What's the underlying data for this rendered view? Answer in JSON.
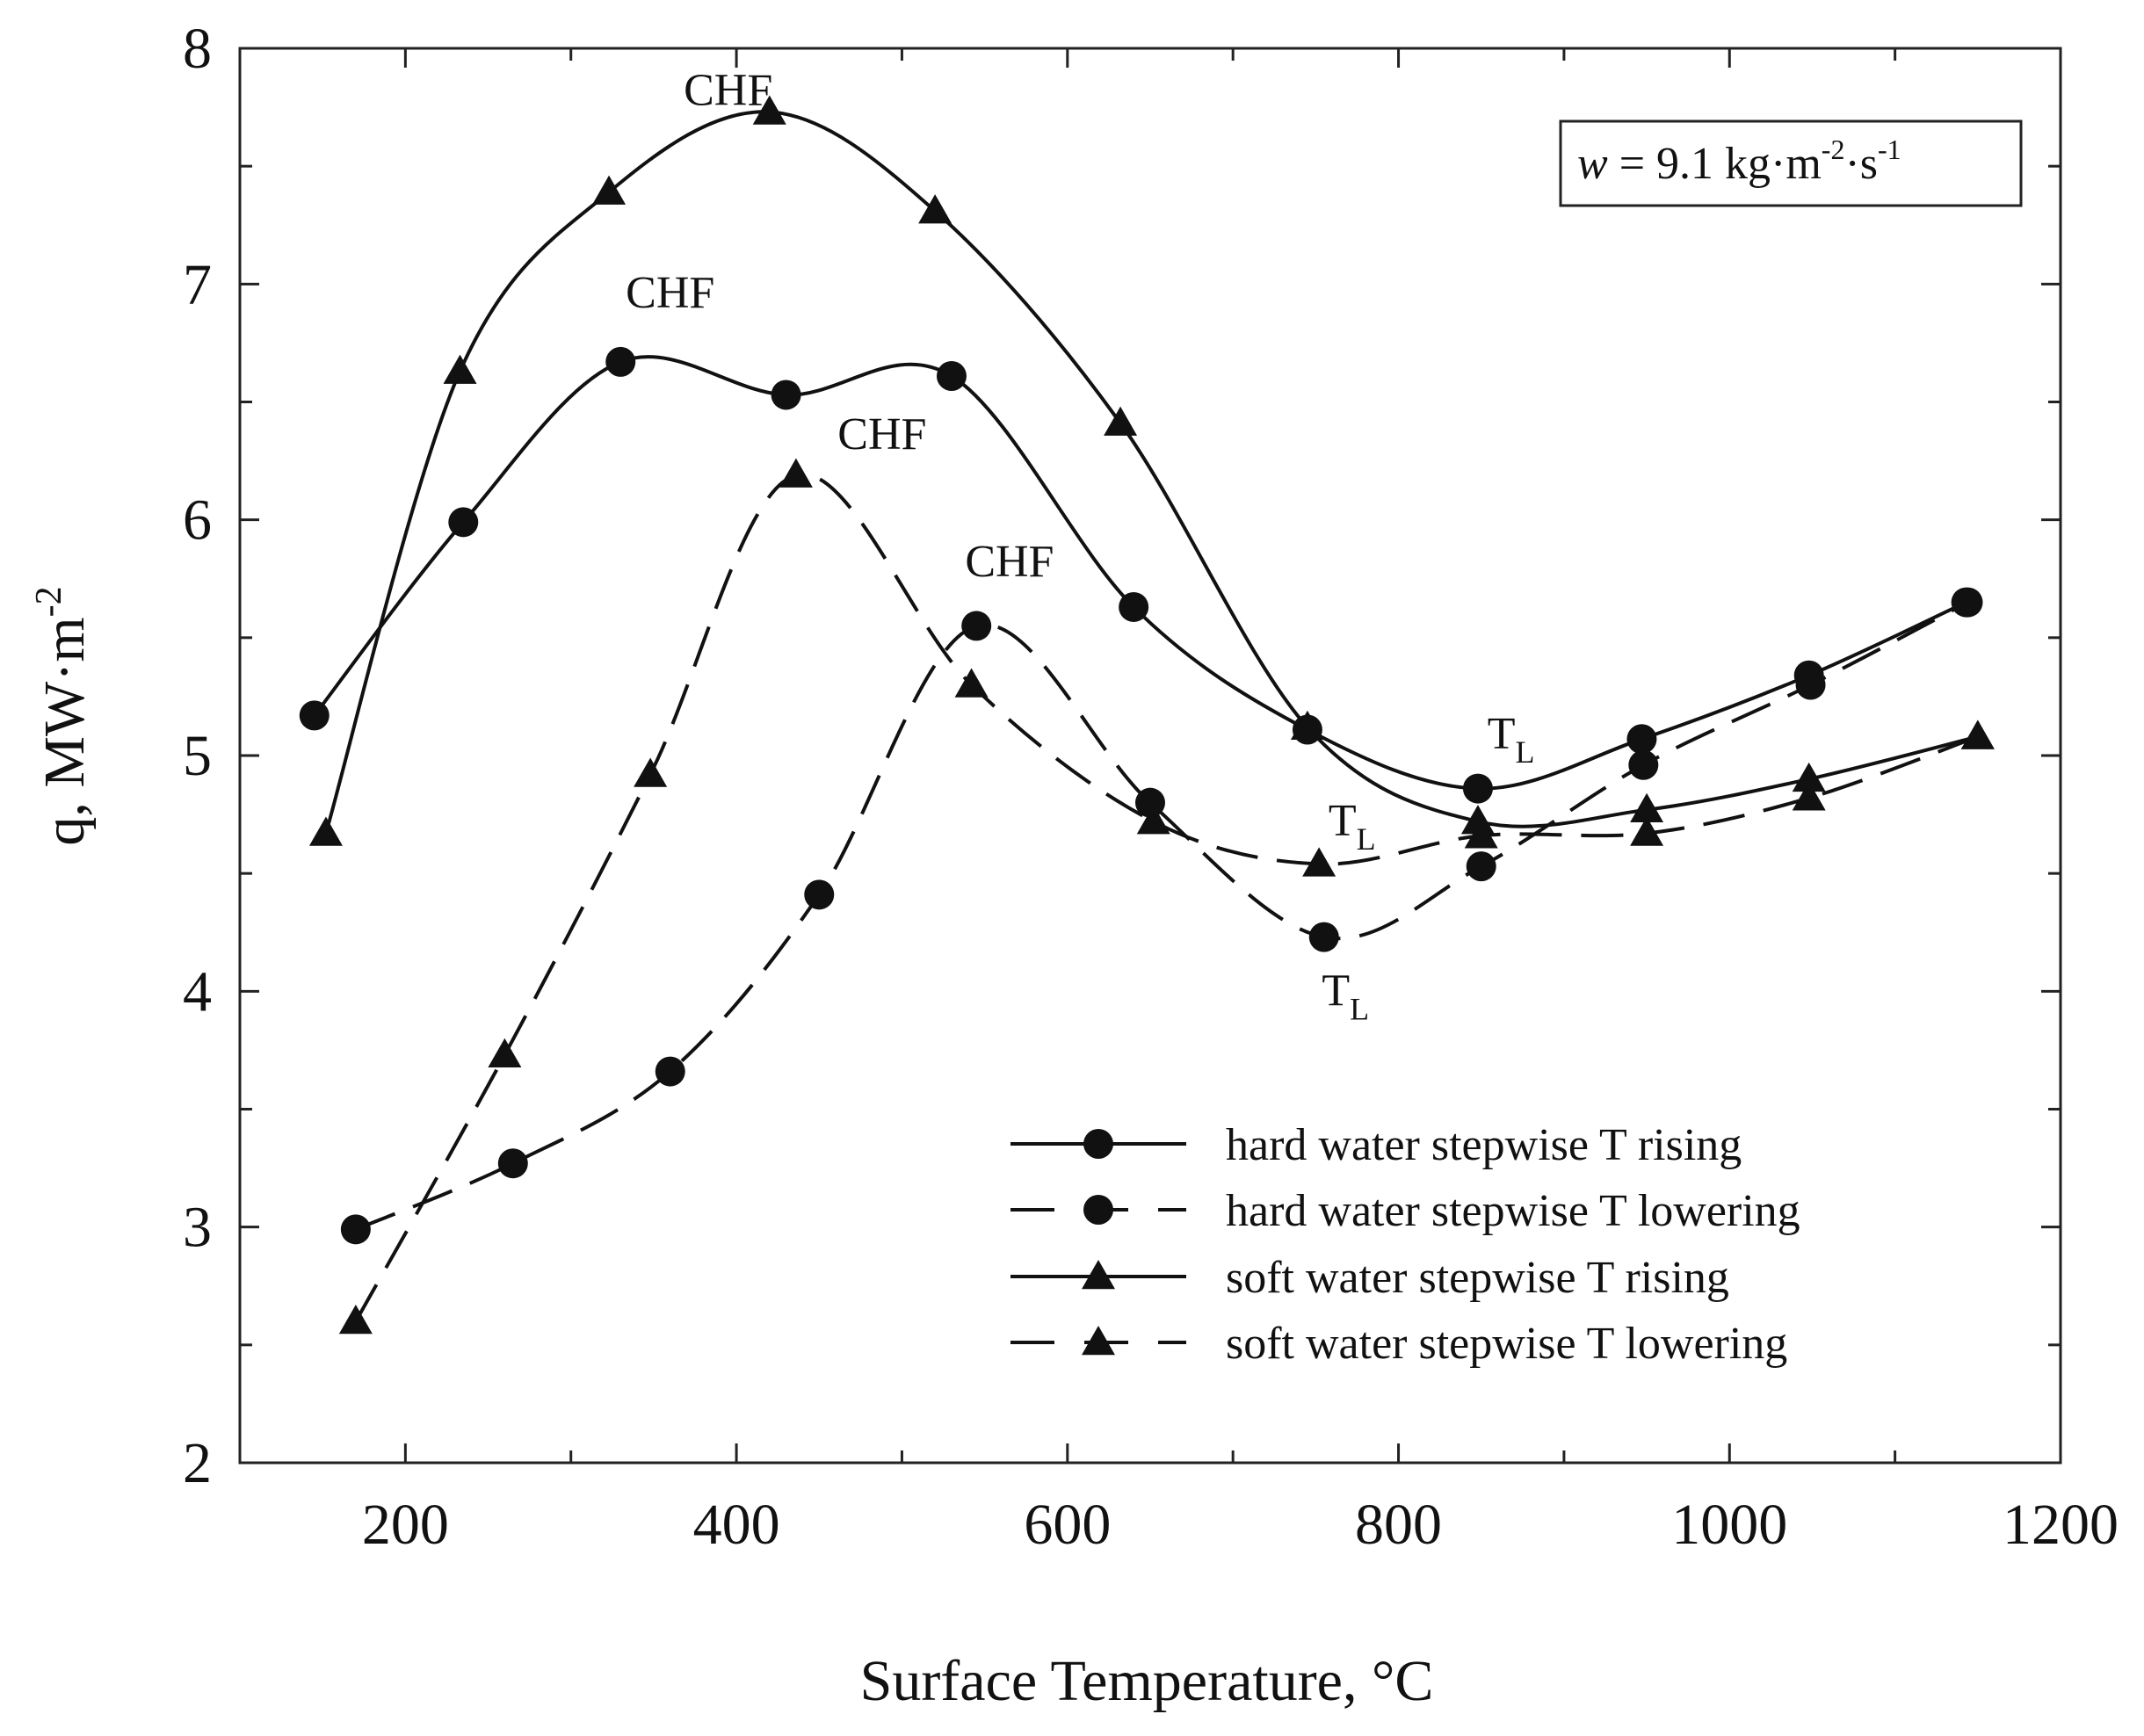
{
  "chart_data": {
    "type": "line",
    "title": "",
    "xlabel": "Surface Temperature, °C",
    "ylabel": "q, MW·m",
    "ylabel_sup": "-2",
    "xlim": [
      100,
      1200
    ],
    "ylim": [
      2,
      8
    ],
    "xticks": [
      200,
      400,
      600,
      800,
      1000,
      1200
    ],
    "yticks": [
      2,
      3,
      4,
      5,
      6,
      7,
      8
    ],
    "grid": false,
    "condition_box": {
      "var": "w",
      "eq": " = 9.1 kg·m",
      "sup1": "-2",
      "mid": "·s",
      "sup2": "-1"
    },
    "legend_position": "bottom-right",
    "series": [
      {
        "name": "hard water stepwise T rising",
        "marker": "circle",
        "dashed": false,
        "x": [
          145,
          235,
          330,
          430,
          530,
          640,
          745,
          848,
          947,
          1048,
          1143
        ],
        "y": [
          5.17,
          5.99,
          6.67,
          6.53,
          6.61,
          5.63,
          5.11,
          4.86,
          5.07,
          5.34,
          5.65
        ]
      },
      {
        "name": "hard water stepwise T lowering",
        "marker": "circle",
        "dashed": true,
        "x": [
          170,
          265,
          360,
          450,
          545,
          650,
          755,
          850,
          948,
          1049,
          1144
        ],
        "y": [
          2.99,
          3.27,
          3.66,
          4.41,
          5.55,
          4.8,
          4.23,
          4.53,
          4.96,
          5.3,
          5.65
        ]
      },
      {
        "name": "soft water stepwise T rising",
        "marker": "triangle",
        "dashed": false,
        "x": [
          152,
          233,
          323,
          420,
          520,
          632,
          745,
          848,
          950,
          1048,
          1150
        ],
        "y": [
          4.67,
          6.63,
          7.39,
          7.73,
          7.31,
          6.41,
          5.12,
          4.72,
          4.77,
          4.9,
          5.08
        ]
      },
      {
        "name": "soft water stepwise T lowering",
        "marker": "triangle",
        "dashed": true,
        "x": [
          170,
          260,
          348,
          436,
          542,
          652,
          752,
          850,
          950,
          1048,
          1150
        ],
        "y": [
          2.6,
          3.73,
          4.92,
          6.19,
          5.3,
          4.72,
          4.54,
          4.66,
          4.67,
          4.82,
          5.08
        ]
      }
    ],
    "annotations": [
      {
        "text": "CHF",
        "x": 395,
        "y": 7.76
      },
      {
        "text": "CHF",
        "x": 360,
        "y": 6.9
      },
      {
        "text": "CHF",
        "x": 488,
        "y": 6.3
      },
      {
        "text": "CHF",
        "x": 565,
        "y": 5.76
      },
      {
        "text": "T",
        "sub": "L",
        "x": 868,
        "y": 5.03
      },
      {
        "text": "T",
        "sub": "L",
        "x": 772,
        "y": 4.66
      },
      {
        "text": "T",
        "sub": "L",
        "x": 768,
        "y": 3.94
      }
    ]
  }
}
